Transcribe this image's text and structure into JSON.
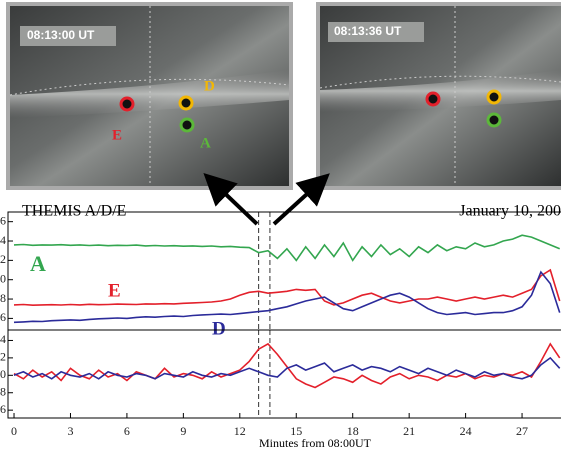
{
  "images": [
    {
      "time": "08:13:00 UT",
      "labels": [
        "D",
        "E",
        "A"
      ]
    },
    {
      "time": "08:13:36 UT"
    }
  ],
  "chart_data": [
    {
      "type": "line",
      "title": "THEMIS A/D/E",
      "subtitle": "January 10, 200",
      "x": [
        0,
        0.5,
        1,
        1.5,
        2,
        2.5,
        3,
        3.5,
        4,
        4.5,
        5,
        5.5,
        6,
        6.5,
        7,
        7.5,
        8,
        8.5,
        9,
        9.5,
        10,
        10.5,
        11,
        11.5,
        12,
        12.5,
        13,
        13.5,
        14,
        14.5,
        15,
        15.5,
        16,
        16.5,
        17,
        17.5,
        18,
        18.5,
        19,
        19.5,
        20,
        20.5,
        21,
        21.5,
        22,
        22.5,
        23,
        23.5,
        24,
        24.5,
        25,
        25.5,
        26,
        26.5,
        27,
        27.5,
        28,
        28.5,
        29
      ],
      "xlim": [
        -0.32,
        29.07
      ],
      "ylim": [
        -0.6,
        5.5
      ],
      "yticks": [
        {
          "value": 5,
          "label": "6"
        },
        {
          "value": 4,
          "label": "4"
        },
        {
          "value": 3,
          "label": "2"
        },
        {
          "value": 2,
          "label": "0"
        },
        {
          "value": 1,
          "label": "8"
        },
        {
          "value": 0,
          "label": "6"
        }
      ],
      "markers": [
        13,
        13.6
      ],
      "series": [
        {
          "name": "A",
          "color": "#33a64f",
          "values": [
            3.8,
            3.82,
            3.78,
            3.8,
            3.79,
            3.81,
            3.78,
            3.8,
            3.77,
            3.79,
            3.76,
            3.78,
            3.77,
            3.79,
            3.75,
            3.77,
            3.74,
            3.76,
            3.73,
            3.75,
            3.72,
            3.74,
            3.7,
            3.72,
            3.68,
            3.66,
            3.4,
            3.5,
            3.1,
            3.6,
            3.0,
            3.7,
            3.1,
            3.8,
            3.2,
            3.9,
            3.0,
            3.7,
            3.2,
            3.8,
            3.3,
            3.6,
            3.2,
            3.7,
            3.4,
            3.8,
            3.5,
            3.7,
            3.6,
            3.9,
            3.7,
            3.8,
            4.0,
            4.1,
            4.3,
            4.2,
            4.0,
            3.8,
            3.6
          ]
        },
        {
          "name": "E",
          "color": "#e3202b",
          "values": [
            0.7,
            0.72,
            0.68,
            0.7,
            0.71,
            0.69,
            0.72,
            0.7,
            0.73,
            0.71,
            0.72,
            0.74,
            0.73,
            0.72,
            0.75,
            0.74,
            0.76,
            0.75,
            0.78,
            0.8,
            0.82,
            0.85,
            0.9,
            1.0,
            1.2,
            1.35,
            1.4,
            1.3,
            1.35,
            1.4,
            1.5,
            1.45,
            1.5,
            0.9,
            0.7,
            0.8,
            1.0,
            1.2,
            1.3,
            1.1,
            0.9,
            0.8,
            0.9,
            1.0,
            1.0,
            1.1,
            1.0,
            0.9,
            1.0,
            1.1,
            1.0,
            1.1,
            1.2,
            1.1,
            1.3,
            1.5,
            2.2,
            2.5,
            0.9
          ]
        },
        {
          "name": "D",
          "color": "#2b2b9a",
          "values": [
            -0.2,
            -0.18,
            -0.15,
            -0.16,
            -0.12,
            -0.1,
            -0.08,
            -0.1,
            -0.05,
            -0.02,
            0,
            0.02,
            0,
            0.05,
            0.08,
            0.06,
            0.1,
            0.12,
            0.1,
            0.15,
            0.18,
            0.2,
            0.22,
            0.2,
            0.25,
            0.3,
            0.35,
            0.4,
            0.5,
            0.6,
            0.75,
            0.9,
            1.0,
            1.1,
            0.8,
            0.5,
            0.4,
            0.6,
            0.8,
            1.0,
            1.2,
            1.3,
            1.1,
            0.8,
            0.5,
            0.3,
            0.2,
            0.25,
            0.3,
            0.2,
            0.25,
            0.3,
            0.3,
            0.4,
            0.6,
            1.2,
            2.4,
            1.8,
            0.3
          ]
        }
      ]
    },
    {
      "type": "line",
      "x_label": "Minutes from 08:00UT",
      "x": [
        0,
        0.5,
        1,
        1.5,
        2,
        2.5,
        3,
        3.5,
        4,
        4.5,
        5,
        5.5,
        6,
        6.5,
        7,
        7.5,
        8,
        8.5,
        9,
        9.5,
        10,
        10.5,
        11,
        11.5,
        12,
        12.5,
        13,
        13.5,
        14,
        14.5,
        15,
        15.5,
        16,
        16.5,
        17,
        17.5,
        18,
        18.5,
        19,
        19.5,
        20,
        20.5,
        21,
        21.5,
        22,
        22.5,
        23,
        23.5,
        24,
        24.5,
        25,
        25.5,
        26,
        26.5,
        27,
        27.5,
        28,
        28.5,
        29
      ],
      "xlim": [
        -0.32,
        29.07
      ],
      "xticks": [
        0,
        3,
        6,
        9,
        12,
        15,
        18,
        21,
        24,
        27
      ],
      "ylim": [
        -0.45,
        4.6
      ],
      "yticks": [
        {
          "value": 4,
          "label": "4"
        },
        {
          "value": 3,
          "label": "2"
        },
        {
          "value": 2,
          "label": "0"
        },
        {
          "value": 1,
          "label": "8"
        },
        {
          "value": 0,
          "label": "6"
        }
      ],
      "markers": [
        13,
        13.6
      ],
      "series": [
        {
          "color": "#e3202b",
          "values": [
            2.1,
            1.8,
            2.3,
            1.9,
            2.2,
            1.7,
            2.4,
            2.0,
            1.8,
            2.3,
            1.9,
            2.1,
            1.7,
            2.2,
            2.0,
            1.8,
            2.4,
            1.9,
            2.1,
            2.0,
            1.8,
            2.2,
            1.9,
            2.1,
            2.3,
            2.8,
            3.5,
            3.8,
            3.2,
            2.5,
            1.8,
            1.5,
            1.3,
            1.6,
            1.9,
            1.8,
            1.6,
            2.0,
            1.7,
            1.5,
            1.9,
            2.1,
            1.8,
            2.0,
            1.9,
            1.7,
            2.0,
            1.9,
            2.1,
            1.8,
            2.0,
            1.9,
            2.1,
            2.0,
            2.2,
            1.9,
            2.8,
            3.8,
            3.0
          ]
        },
        {
          "color": "#2b2b9a",
          "values": [
            2.0,
            2.2,
            1.9,
            2.1,
            1.8,
            2.2,
            2.0,
            1.9,
            2.1,
            1.8,
            2.2,
            2.0,
            1.9,
            2.1,
            2.0,
            1.8,
            2.1,
            2.0,
            1.9,
            2.2,
            2.0,
            1.9,
            2.1,
            2.0,
            2.2,
            2.4,
            2.2,
            2.0,
            1.9,
            2.4,
            2.6,
            2.3,
            2.5,
            2.7,
            2.2,
            2.4,
            2.6,
            2.3,
            2.5,
            2.4,
            2.2,
            2.5,
            2.3,
            2.1,
            2.4,
            2.2,
            2.0,
            2.3,
            2.1,
            1.9,
            2.2,
            2.0,
            2.1,
            1.9,
            1.8,
            2.0,
            2.6,
            3.0,
            2.4
          ]
        }
      ]
    }
  ]
}
